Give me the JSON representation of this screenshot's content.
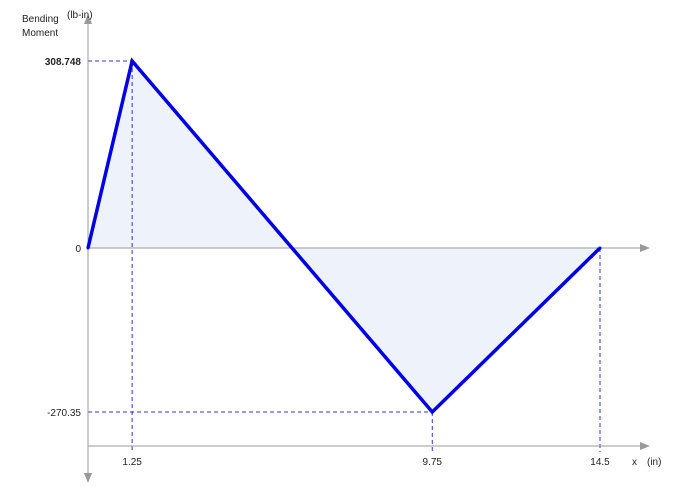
{
  "chart_data": {
    "type": "line",
    "title": "",
    "ylabel_line1": "Bending",
    "ylabel_line2": "Moment",
    "yunit": "(lb-in)",
    "xlabel": "x",
    "xunit": "(in)",
    "x": [
      0,
      1.25,
      9.75,
      14.5
    ],
    "values": [
      0,
      308.748,
      -270.35,
      0
    ],
    "x_tick_labels": [
      "1.25",
      "9.75",
      "14.5"
    ],
    "y_tick_labels": [
      "308.748",
      "0",
      "-270.35"
    ],
    "xlim": [
      0,
      15.8
    ],
    "ylim": [
      -330,
      320
    ],
    "grid": false,
    "colors": {
      "line": "#0000e6",
      "fill": "#eef3fb",
      "guide": "#3333cc",
      "axis": "#999999"
    }
  }
}
